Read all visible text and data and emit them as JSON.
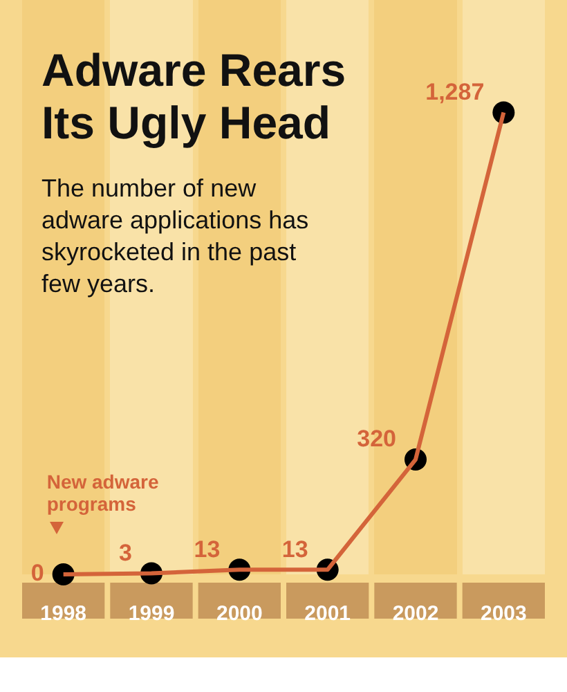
{
  "chart_data": {
    "type": "line",
    "title": "Adware Rears Its Ugly Head",
    "subtitle": "The number of new adware applications has skyrocketed in the past few years.",
    "categories": [
      "1998",
      "1999",
      "2000",
      "2001",
      "2002",
      "2003"
    ],
    "series": [
      {
        "color": "#d4643a",
        "values": [
          0,
          3,
          13,
          13,
          320,
          1287
        ],
        "value_labels": [
          "0",
          "3",
          "13",
          "13",
          "320",
          "1,287"
        ]
      }
    ],
    "data_labels": true,
    "marker": "circle",
    "grid": false,
    "legend": false,
    "annotations": [
      "New adware programs"
    ]
  }
}
